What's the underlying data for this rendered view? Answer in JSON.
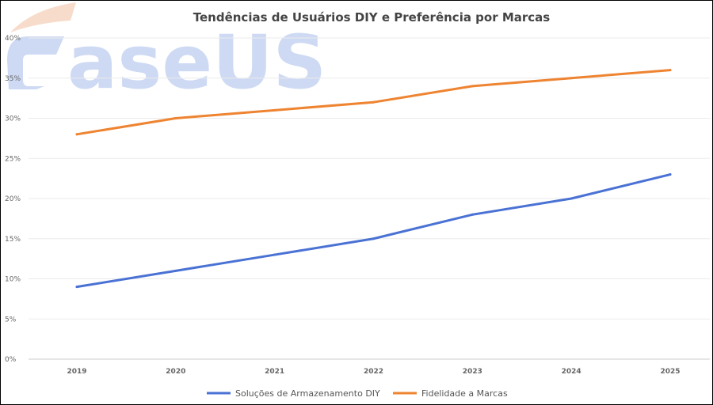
{
  "chart_data": {
    "type": "line",
    "title": "Tendências de Usuários DIY e Preferência por Marcas",
    "xlabel": "",
    "ylabel": "",
    "categories": [
      "2019",
      "2020",
      "2021",
      "2022",
      "2023",
      "2024",
      "2025"
    ],
    "yticks": [
      "0%",
      "5%",
      "10%",
      "15%",
      "20%",
      "25%",
      "30%",
      "35%",
      "40%"
    ],
    "ylim": [
      0,
      40
    ],
    "grid": true,
    "legend_position": "bottom",
    "series": [
      {
        "name": "Soluções de Armazenamento DIY",
        "color": "#4a72d4",
        "values": [
          9,
          11,
          13,
          15,
          18,
          20,
          23
        ]
      },
      {
        "name": "Fidelidade a Marcas",
        "color": "#ee8431",
        "values": [
          28,
          30,
          31,
          32,
          34,
          35,
          36
        ]
      }
    ]
  },
  "watermark": {
    "text": "EaseUS",
    "color": "#c9d7f2",
    "accent_color": "#f6c8b0"
  }
}
